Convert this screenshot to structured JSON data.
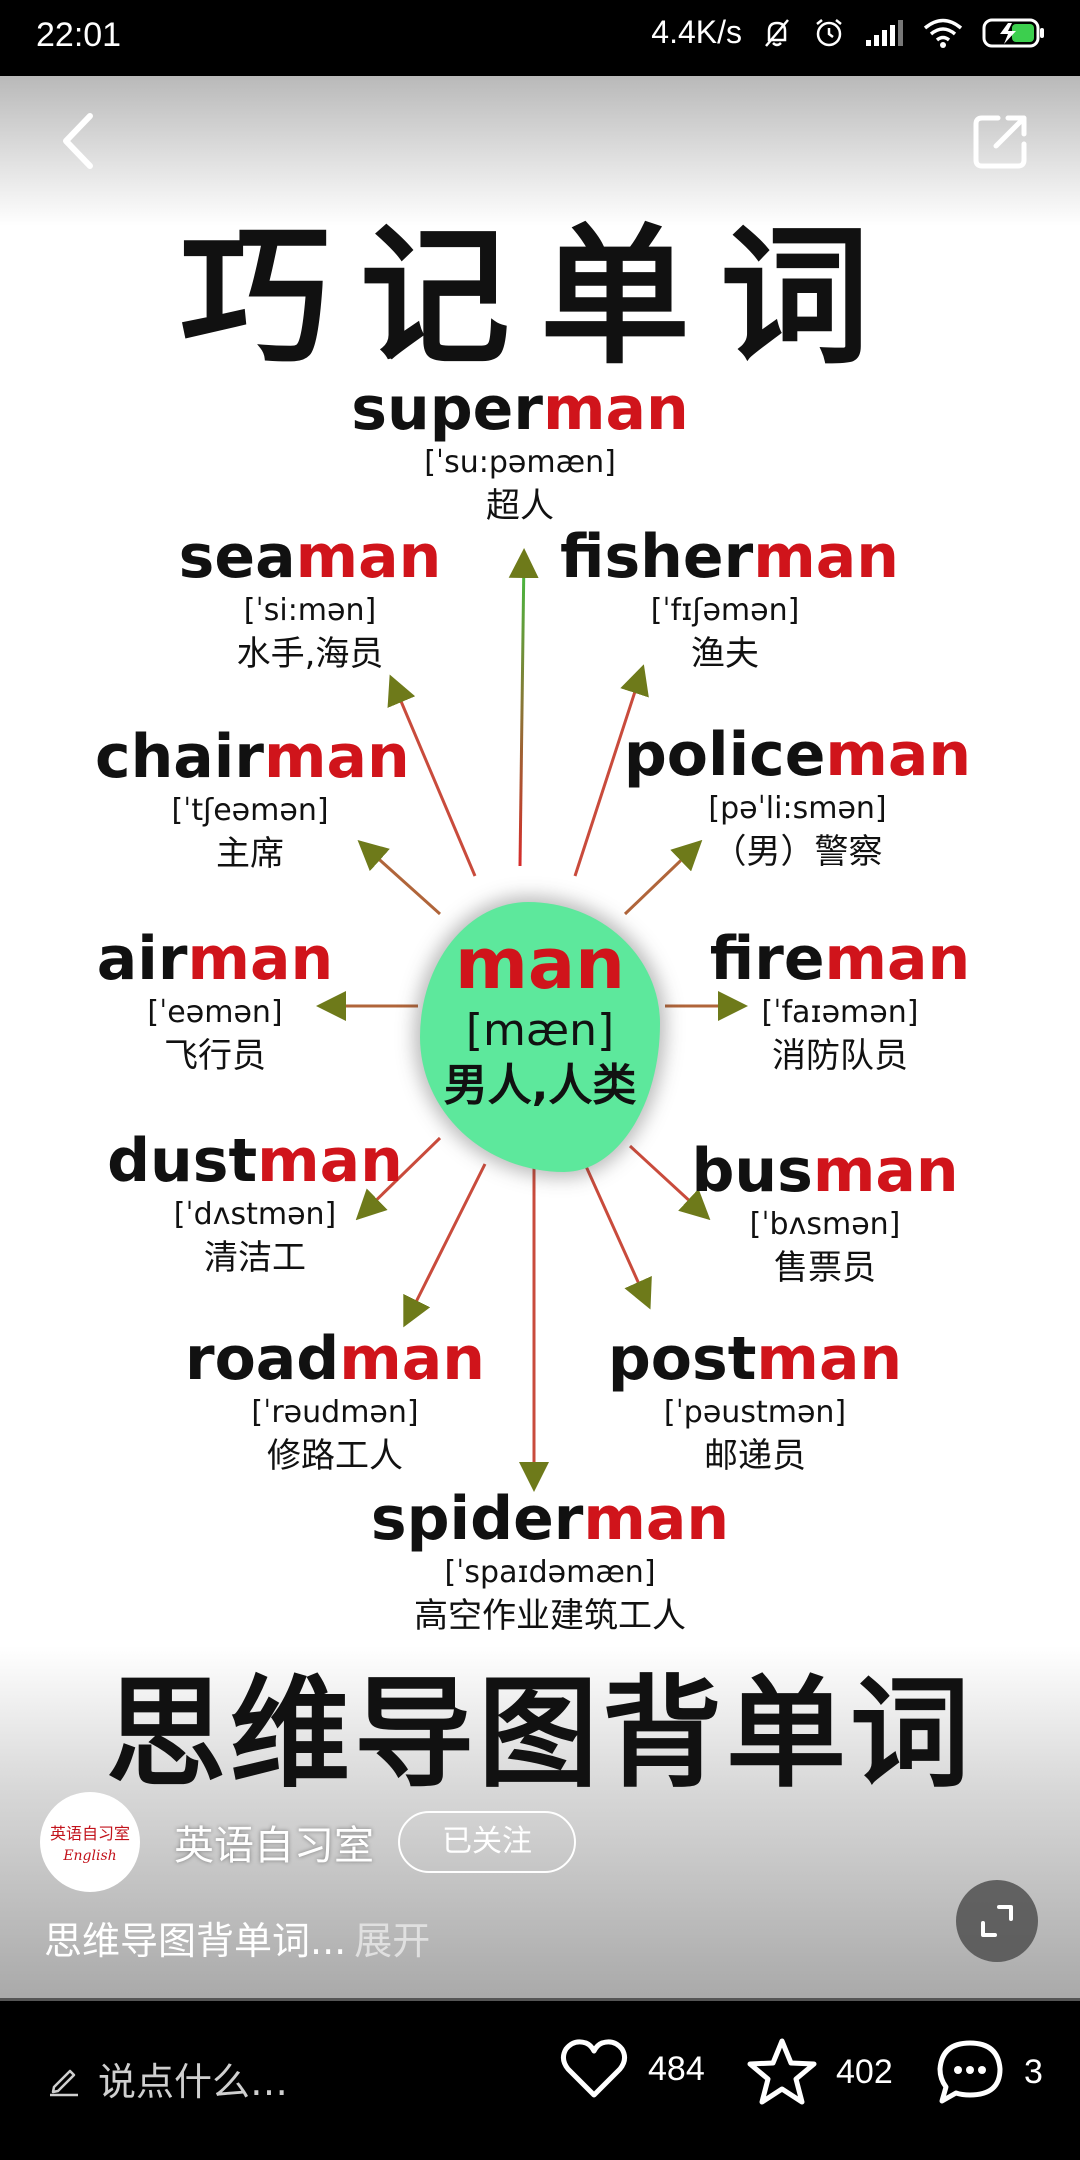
{
  "status_bar": {
    "time": "22:01",
    "network_speed": "4.4K/s",
    "icons": [
      "mute-icon",
      "alarm-icon",
      "signal-icon",
      "wifi-icon",
      "battery-charging-icon"
    ]
  },
  "post": {
    "image": {
      "title": "巧记单词",
      "center": {
        "word": "man",
        "phonetic": "[mæn]",
        "meaning": "男人,人类"
      },
      "words": [
        {
          "prefix": "super",
          "suffix": "man",
          "phonetic": "[ˈsu:pəmæn]",
          "meaning": "超人"
        },
        {
          "prefix": "sea",
          "suffix": "man",
          "phonetic": "[ˈsi:mən]",
          "meaning": "水手,海员"
        },
        {
          "prefix": "fisher",
          "suffix": "man",
          "phonetic": "[ˈfɪʃəmən]",
          "meaning": "渔夫"
        },
        {
          "prefix": "chair",
          "suffix": "man",
          "phonetic": "[ˈtʃeəmən]",
          "meaning": "主席"
        },
        {
          "prefix": "police",
          "suffix": "man",
          "phonetic": "[pəˈli:smən]",
          "meaning": "（男）警察"
        },
        {
          "prefix": "air",
          "suffix": "man",
          "phonetic": "[ˈeəmən]",
          "meaning": "飞行员"
        },
        {
          "prefix": "fire",
          "suffix": "man",
          "phonetic": "[ˈfaɪəmən]",
          "meaning": "消防队员"
        },
        {
          "prefix": "dust",
          "suffix": "man",
          "phonetic": "[ˈdʌstmən]",
          "meaning": "清洁工"
        },
        {
          "prefix": "bus",
          "suffix": "man",
          "phonetic": "[ˈbʌsmən]",
          "meaning": "售票员"
        },
        {
          "prefix": "road",
          "suffix": "man",
          "phonetic": "[ˈrəudmən]",
          "meaning": "修路工人"
        },
        {
          "prefix": "post",
          "suffix": "man",
          "phonetic": "[ˈpəustmən]",
          "meaning": "邮递员"
        },
        {
          "prefix": "spider",
          "suffix": "man",
          "phonetic": "[ˈspaɪdəmæn]",
          "meaning": "高空作业建筑工人"
        }
      ],
      "banner": "思维导图背单词",
      "colors": {
        "accent_red": "#d0141b",
        "center_green": "#5de89c"
      }
    },
    "author": {
      "name": "英语自习室",
      "avatar_text": "英语自习室",
      "avatar_subtext": "English",
      "follow_label": "已关注"
    },
    "caption": "思维导图背单词...",
    "expand_label": "展开"
  },
  "bottom_bar": {
    "comment_placeholder": "说点什么…",
    "likes": "484",
    "favorites": "402",
    "comments": "3"
  }
}
